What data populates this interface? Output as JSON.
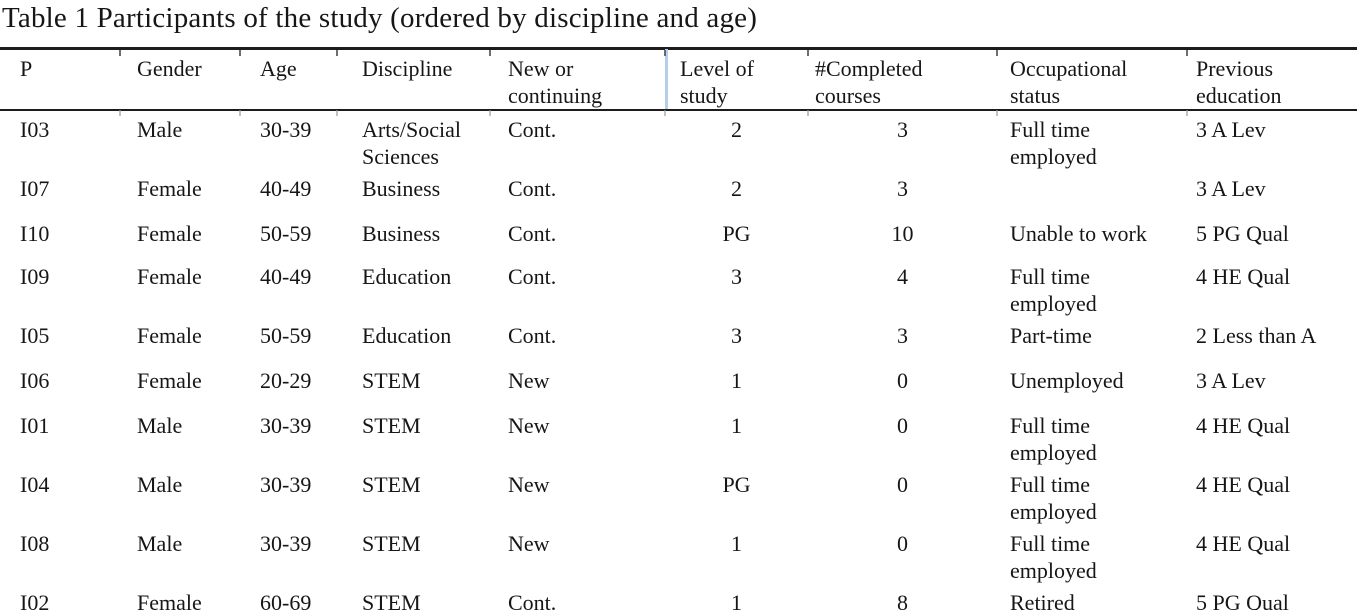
{
  "caption": "Table 1 Participants of the study (ordered by discipline and age)",
  "table": {
    "columns": [
      {
        "key": "p",
        "label": "P"
      },
      {
        "key": "gender",
        "label": "Gender"
      },
      {
        "key": "age",
        "label": "Age"
      },
      {
        "key": "discipline",
        "label": "Discipline"
      },
      {
        "key": "new-or-continuing",
        "label": "New or\ncontinuing"
      },
      {
        "key": "level-of-study",
        "label": "Level of\nstudy"
      },
      {
        "key": "completed-courses",
        "label": "#Completed\ncourses"
      },
      {
        "key": "occupational-status",
        "label": "Occupational\nstatus"
      },
      {
        "key": "previous-education",
        "label": "Previous\neducation"
      }
    ],
    "rows": [
      [
        "I03",
        "Male",
        "30-39",
        "Arts/Social\nSciences",
        "Cont.",
        "2",
        "3",
        "Full time\nemployed",
        "3 A Lev"
      ],
      [
        "I07",
        "Female",
        "40-49",
        "Business",
        "Cont.",
        "2",
        "3",
        "",
        "3 A Lev"
      ],
      [
        "I10",
        "Female",
        "50-59",
        "Business",
        "Cont.",
        "PG",
        "10",
        "Unable to work",
        "5 PG Qual"
      ],
      [
        "I09",
        "Female",
        "40-49",
        "Education",
        "Cont.",
        "3",
        "4",
        "Full time\nemployed",
        "4 HE Qual"
      ],
      [
        "I05",
        "Female",
        "50-59",
        "Education",
        "Cont.",
        "3",
        "3",
        "Part-time",
        "2 Less than A"
      ],
      [
        "I06",
        "Female",
        "20-29",
        "STEM",
        "New",
        "1",
        "0",
        "Unemployed",
        "3 A Lev"
      ],
      [
        "I01",
        "Male",
        "30-39",
        "STEM",
        "New",
        "1",
        "0",
        "Full time\nemployed",
        "4 HE Qual"
      ],
      [
        "I04",
        "Male",
        "30-39",
        "STEM",
        "New",
        "PG",
        "0",
        "Full time\nemployed",
        "4 HE Qual"
      ],
      [
        "I08",
        "Male",
        "30-39",
        "STEM",
        "New",
        "1",
        "0",
        "Full time\nemployed",
        "4 HE Qual"
      ],
      [
        "I02",
        "Female",
        "60-69",
        "STEM",
        "Cont.",
        "1",
        "8",
        "Retired",
        "5 PG Qual"
      ]
    ]
  }
}
